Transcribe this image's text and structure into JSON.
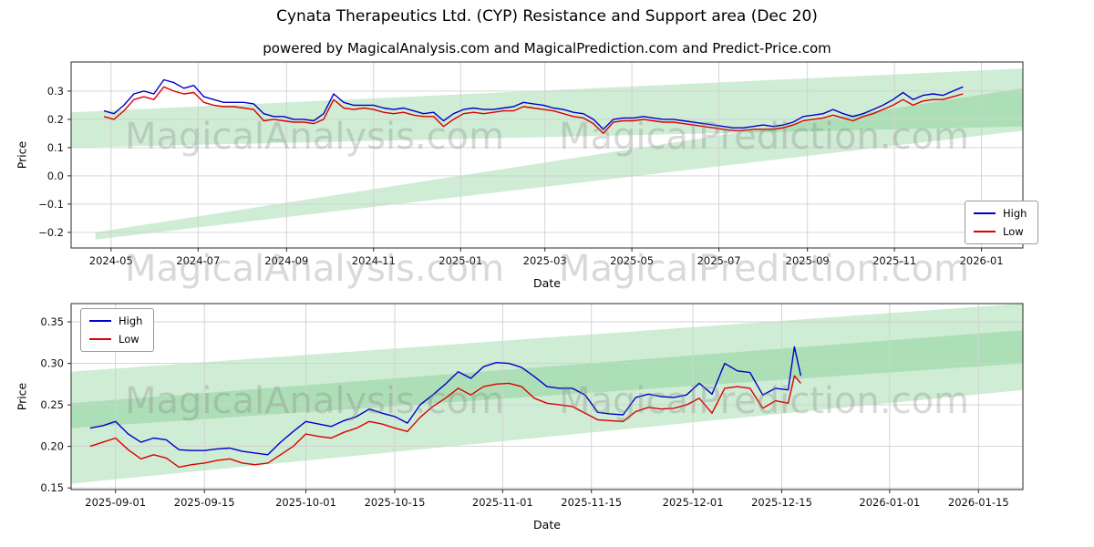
{
  "title": "Cynata Therapeutics Ltd. (CYP) Resistance and Support area (Dec 20)",
  "subtitle": "powered by MagicalAnalysis.com and MagicalPrediction.com and Predict-Price.com",
  "watermarks": {
    "left": "MagicalAnalysis.com",
    "right": "MagicalPrediction.com"
  },
  "colors": {
    "high": "#0000cc",
    "low": "#dd0000",
    "band": "#5fbf6f",
    "grid": "#d0d0d0",
    "spine": "#2a2a2a"
  },
  "chart_data": [
    {
      "type": "line",
      "title": "",
      "xlabel": "Date",
      "ylabel": "Price",
      "xlim": [
        "2024-04-03",
        "2026-01-30"
      ],
      "ylim": [
        -0.255,
        0.403
      ],
      "grid": true,
      "legend_position": "center-right",
      "xticks": [
        "2024-05-01",
        "2024-07-01",
        "2024-09-01",
        "2024-11-01",
        "2025-01-01",
        "2025-03-01",
        "2025-05-01",
        "2025-07-01",
        "2025-09-01",
        "2025-11-01",
        "2026-01-01"
      ],
      "xtick_labels": [
        "2024-05",
        "2024-07",
        "2024-09",
        "2024-11",
        "2025-01",
        "2025-03",
        "2025-05",
        "2025-07",
        "2025-09",
        "2025-11",
        "2026-01"
      ],
      "yticks": [
        -0.2,
        -0.1,
        0.0,
        0.1,
        0.2,
        0.3
      ],
      "ytick_labels": [
        "−0.2",
        "−0.1",
        "0.0",
        "0.1",
        "0.2",
        "0.3"
      ],
      "x": [
        "2024-04-26",
        "2024-05-03",
        "2024-05-10",
        "2024-05-17",
        "2024-05-24",
        "2024-05-31",
        "2024-06-07",
        "2024-06-14",
        "2024-06-21",
        "2024-06-28",
        "2024-07-05",
        "2024-07-12",
        "2024-07-19",
        "2024-07-26",
        "2024-08-02",
        "2024-08-09",
        "2024-08-16",
        "2024-08-23",
        "2024-08-30",
        "2024-09-06",
        "2024-09-13",
        "2024-09-20",
        "2024-09-27",
        "2024-10-04",
        "2024-10-11",
        "2024-10-18",
        "2024-10-25",
        "2024-11-01",
        "2024-11-08",
        "2024-11-15",
        "2024-11-22",
        "2024-11-29",
        "2024-12-06",
        "2024-12-13",
        "2024-12-20",
        "2024-12-27",
        "2025-01-03",
        "2025-01-10",
        "2025-01-17",
        "2025-01-24",
        "2025-01-31",
        "2025-02-07",
        "2025-02-14",
        "2025-02-21",
        "2025-02-28",
        "2025-03-07",
        "2025-03-14",
        "2025-03-21",
        "2025-03-28",
        "2025-04-04",
        "2025-04-11",
        "2025-04-18",
        "2025-04-25",
        "2025-05-02",
        "2025-05-09",
        "2025-05-16",
        "2025-05-23",
        "2025-05-30",
        "2025-06-06",
        "2025-06-13",
        "2025-06-20",
        "2025-06-27",
        "2025-07-04",
        "2025-07-11",
        "2025-07-18",
        "2025-07-25",
        "2025-08-01",
        "2025-08-08",
        "2025-08-15",
        "2025-08-22",
        "2025-08-29",
        "2025-09-05",
        "2025-09-12",
        "2025-09-19",
        "2025-09-26",
        "2025-10-03",
        "2025-10-10",
        "2025-10-17",
        "2025-10-24",
        "2025-10-31",
        "2025-11-07",
        "2025-11-14",
        "2025-11-21",
        "2025-11-28",
        "2025-12-05",
        "2025-12-12",
        "2025-12-19"
      ],
      "series": [
        {
          "name": "High",
          "color": "#0000cc",
          "values": [
            0.23,
            0.22,
            0.25,
            0.29,
            0.3,
            0.29,
            0.34,
            0.33,
            0.31,
            0.32,
            0.28,
            0.27,
            0.26,
            0.26,
            0.26,
            0.255,
            0.22,
            0.21,
            0.21,
            0.2,
            0.2,
            0.195,
            0.22,
            0.29,
            0.26,
            0.25,
            0.25,
            0.25,
            0.24,
            0.235,
            0.24,
            0.23,
            0.22,
            0.225,
            0.195,
            0.22,
            0.235,
            0.24,
            0.235,
            0.235,
            0.24,
            0.245,
            0.26,
            0.255,
            0.25,
            0.24,
            0.235,
            0.225,
            0.22,
            0.2,
            0.165,
            0.2,
            0.205,
            0.205,
            0.21,
            0.205,
            0.2,
            0.2,
            0.195,
            0.19,
            0.185,
            0.18,
            0.175,
            0.17,
            0.17,
            0.175,
            0.18,
            0.175,
            0.18,
            0.19,
            0.21,
            0.215,
            0.22,
            0.235,
            0.22,
            0.21,
            0.22,
            0.235,
            0.25,
            0.27,
            0.295,
            0.27,
            0.285,
            0.29,
            0.285,
            0.3,
            0.315
          ]
        },
        {
          "name": "Low",
          "color": "#dd0000",
          "values": [
            0.21,
            0.2,
            0.23,
            0.27,
            0.28,
            0.27,
            0.315,
            0.3,
            0.29,
            0.295,
            0.26,
            0.25,
            0.245,
            0.245,
            0.24,
            0.235,
            0.195,
            0.2,
            0.195,
            0.19,
            0.19,
            0.185,
            0.2,
            0.27,
            0.24,
            0.235,
            0.24,
            0.235,
            0.225,
            0.22,
            0.225,
            0.215,
            0.21,
            0.21,
            0.175,
            0.2,
            0.22,
            0.225,
            0.22,
            0.225,
            0.23,
            0.23,
            0.245,
            0.24,
            0.235,
            0.23,
            0.22,
            0.21,
            0.205,
            0.185,
            0.15,
            0.19,
            0.195,
            0.195,
            0.2,
            0.195,
            0.19,
            0.19,
            0.185,
            0.18,
            0.175,
            0.17,
            0.165,
            0.16,
            0.16,
            0.165,
            0.165,
            0.165,
            0.17,
            0.18,
            0.195,
            0.2,
            0.205,
            0.215,
            0.205,
            0.195,
            0.21,
            0.22,
            0.235,
            0.25,
            0.27,
            0.25,
            0.265,
            0.27,
            0.27,
            0.28,
            0.29
          ]
        }
      ],
      "bands": [
        {
          "x": [
            "2024-04-03",
            "2026-01-30"
          ],
          "top": [
            0.225,
            0.38
          ],
          "bottom": [
            0.1,
            0.175
          ]
        },
        {
          "x": [
            "2024-04-20",
            "2026-01-30"
          ],
          "top": [
            -0.2,
            0.31
          ],
          "bottom": [
            -0.225,
            0.16
          ]
        }
      ]
    },
    {
      "type": "line",
      "title": "",
      "xlabel": "Date",
      "ylabel": "Price",
      "xlim": [
        "2025-08-25",
        "2026-01-22"
      ],
      "ylim": [
        0.148,
        0.372
      ],
      "grid": true,
      "legend_position": "top-left",
      "xticks": [
        "2025-09-01",
        "2025-09-15",
        "2025-10-01",
        "2025-10-15",
        "2025-11-01",
        "2025-11-15",
        "2025-12-01",
        "2025-12-15",
        "2026-01-01",
        "2026-01-15"
      ],
      "xtick_labels": [
        "2025-09-01",
        "2025-09-15",
        "2025-10-01",
        "2025-10-15",
        "2025-11-01",
        "2025-11-15",
        "2025-12-01",
        "2025-12-15",
        "2026-01-01",
        "2026-01-15"
      ],
      "yticks": [
        0.15,
        0.2,
        0.25,
        0.3,
        0.35
      ],
      "ytick_labels": [
        "0.15",
        "0.20",
        "0.25",
        "0.30",
        "0.35"
      ],
      "x": [
        "2025-08-28",
        "2025-08-30",
        "2025-09-01",
        "2025-09-03",
        "2025-09-05",
        "2025-09-07",
        "2025-09-09",
        "2025-09-11",
        "2025-09-13",
        "2025-09-15",
        "2025-09-17",
        "2025-09-19",
        "2025-09-21",
        "2025-09-23",
        "2025-09-25",
        "2025-09-27",
        "2025-09-29",
        "2025-10-01",
        "2025-10-03",
        "2025-10-05",
        "2025-10-07",
        "2025-10-09",
        "2025-10-11",
        "2025-10-13",
        "2025-10-15",
        "2025-10-17",
        "2025-10-19",
        "2025-10-21",
        "2025-10-23",
        "2025-10-25",
        "2025-10-27",
        "2025-10-29",
        "2025-10-31",
        "2025-11-02",
        "2025-11-04",
        "2025-11-06",
        "2025-11-08",
        "2025-11-10",
        "2025-11-12",
        "2025-11-14",
        "2025-11-16",
        "2025-11-18",
        "2025-11-20",
        "2025-11-22",
        "2025-11-24",
        "2025-11-26",
        "2025-11-28",
        "2025-11-30",
        "2025-12-02",
        "2025-12-04",
        "2025-12-06",
        "2025-12-08",
        "2025-12-10",
        "2025-12-12",
        "2025-12-14",
        "2025-12-16",
        "2025-12-17",
        "2025-12-18"
      ],
      "series": [
        {
          "name": "High",
          "color": "#0000cc",
          "values": [
            0.222,
            0.225,
            0.23,
            0.215,
            0.205,
            0.21,
            0.208,
            0.196,
            0.195,
            0.195,
            0.197,
            0.198,
            0.194,
            0.192,
            0.19,
            0.205,
            0.218,
            0.23,
            0.227,
            0.224,
            0.231,
            0.236,
            0.245,
            0.24,
            0.236,
            0.228,
            0.25,
            0.262,
            0.275,
            0.29,
            0.282,
            0.296,
            0.301,
            0.3,
            0.295,
            0.284,
            0.272,
            0.27,
            0.27,
            0.262,
            0.241,
            0.239,
            0.238,
            0.259,
            0.263,
            0.26,
            0.259,
            0.262,
            0.276,
            0.263,
            0.3,
            0.291,
            0.289,
            0.262,
            0.27,
            0.268,
            0.32,
            0.285
          ]
        },
        {
          "name": "Low",
          "color": "#dd0000",
          "values": [
            0.2,
            0.205,
            0.21,
            0.196,
            0.185,
            0.19,
            0.186,
            0.175,
            0.178,
            0.18,
            0.183,
            0.185,
            0.18,
            0.178,
            0.18,
            0.19,
            0.2,
            0.215,
            0.212,
            0.21,
            0.217,
            0.222,
            0.23,
            0.227,
            0.222,
            0.218,
            0.235,
            0.248,
            0.258,
            0.27,
            0.262,
            0.272,
            0.275,
            0.276,
            0.272,
            0.258,
            0.252,
            0.25,
            0.248,
            0.24,
            0.232,
            0.231,
            0.23,
            0.242,
            0.247,
            0.245,
            0.246,
            0.25,
            0.258,
            0.24,
            0.27,
            0.272,
            0.27,
            0.246,
            0.255,
            0.252,
            0.285,
            0.276
          ]
        }
      ],
      "bands": [
        {
          "x": [
            "2025-08-25",
            "2026-01-22"
          ],
          "top": [
            0.29,
            0.372
          ],
          "bottom": [
            0.222,
            0.3
          ]
        },
        {
          "x": [
            "2025-08-25",
            "2026-01-22"
          ],
          "top": [
            0.252,
            0.34
          ],
          "bottom": [
            0.155,
            0.268
          ]
        }
      ]
    }
  ]
}
